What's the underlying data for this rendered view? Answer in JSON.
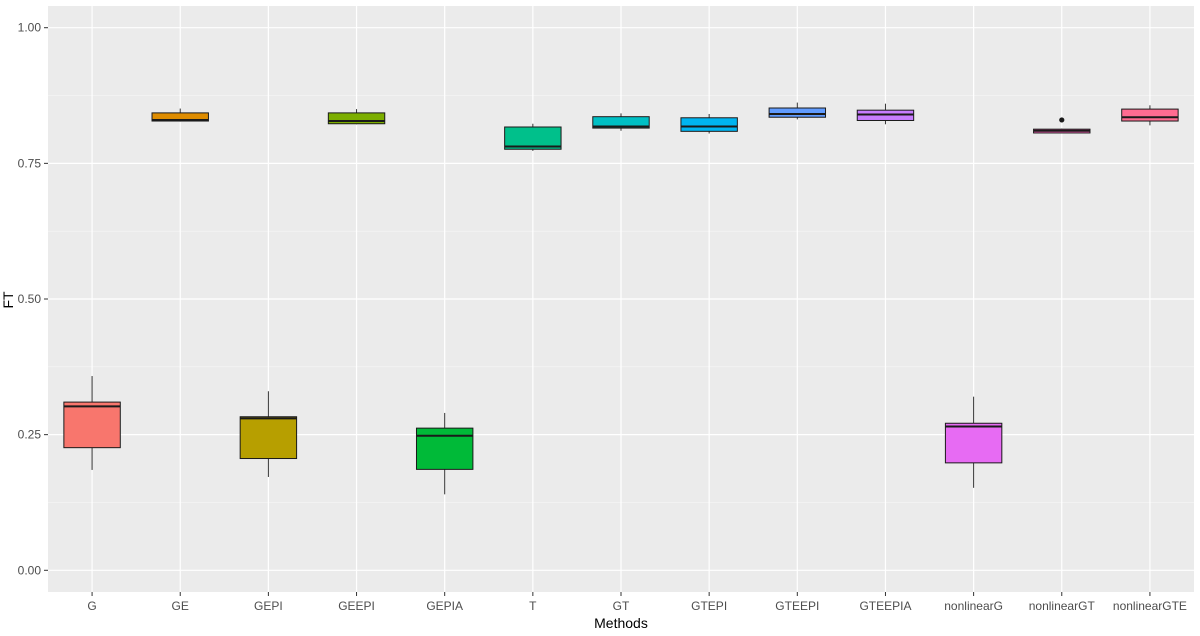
{
  "chart_data": {
    "type": "box",
    "xlabel": "Methods",
    "ylabel": "FT",
    "ylim": [
      -0.04,
      1.04
    ],
    "y_ticks": [
      0.0,
      0.25,
      0.5,
      0.75,
      1.0
    ],
    "y_tick_labels": [
      "0.00",
      "0.25",
      "0.50",
      "0.75",
      "1.00"
    ],
    "grid": true,
    "legend": "none",
    "panel_background": "#ebebeb",
    "grid_color": "#ffffff",
    "categories": [
      "G",
      "GE",
      "GEPI",
      "GEEPI",
      "GEPIA",
      "T",
      "GT",
      "GTEPI",
      "GTEEPI",
      "GTEEPIA",
      "nonlinearG",
      "nonlinearGT",
      "nonlinearGTE"
    ],
    "boxes": [
      {
        "category": "G",
        "color": "#F8766D",
        "min": 0.185,
        "q1": 0.226,
        "median": 0.302,
        "q3": 0.31,
        "max": 0.358,
        "outliers": []
      },
      {
        "category": "GE",
        "color": "#DE8C00",
        "min": 0.827,
        "q1": 0.828,
        "median": 0.83,
        "q3": 0.843,
        "max": 0.851,
        "outliers": []
      },
      {
        "category": "GEPI",
        "color": "#B79F00",
        "min": 0.172,
        "q1": 0.206,
        "median": 0.28,
        "q3": 0.283,
        "max": 0.33,
        "outliers": []
      },
      {
        "category": "GEEPI",
        "color": "#7CAE00",
        "min": 0.822,
        "q1": 0.823,
        "median": 0.828,
        "q3": 0.843,
        "max": 0.85,
        "outliers": []
      },
      {
        "category": "GEPIA",
        "color": "#00BA38",
        "min": 0.14,
        "q1": 0.186,
        "median": 0.248,
        "q3": 0.262,
        "max": 0.29,
        "outliers": []
      },
      {
        "category": "T",
        "color": "#00C08B",
        "min": 0.773,
        "q1": 0.776,
        "median": 0.781,
        "q3": 0.817,
        "max": 0.823,
        "outliers": []
      },
      {
        "category": "GT",
        "color": "#00BFC4",
        "min": 0.81,
        "q1": 0.815,
        "median": 0.818,
        "q3": 0.836,
        "max": 0.842,
        "outliers": []
      },
      {
        "category": "GTEPI",
        "color": "#00B4F0",
        "min": 0.805,
        "q1": 0.809,
        "median": 0.818,
        "q3": 0.834,
        "max": 0.841,
        "outliers": []
      },
      {
        "category": "GTEEPI",
        "color": "#619CFF",
        "min": 0.831,
        "q1": 0.835,
        "median": 0.841,
        "q3": 0.852,
        "max": 0.862,
        "outliers": []
      },
      {
        "category": "GTEEPIA",
        "color": "#C77CFF",
        "min": 0.822,
        "q1": 0.829,
        "median": 0.84,
        "q3": 0.848,
        "max": 0.86,
        "outliers": []
      },
      {
        "category": "nonlinearG",
        "color": "#E76BF3",
        "min": 0.152,
        "q1": 0.198,
        "median": 0.265,
        "q3": 0.271,
        "max": 0.32,
        "outliers": []
      },
      {
        "category": "nonlinearGT",
        "color": "#FF62BC",
        "min": 0.806,
        "q1": 0.806,
        "median": 0.81,
        "q3": 0.813,
        "max": 0.814,
        "outliers": [
          0.83
        ]
      },
      {
        "category": "nonlinearGTE",
        "color": "#FF6C91",
        "min": 0.82,
        "q1": 0.828,
        "median": 0.835,
        "q3": 0.85,
        "max": 0.857,
        "outliers": []
      }
    ]
  }
}
